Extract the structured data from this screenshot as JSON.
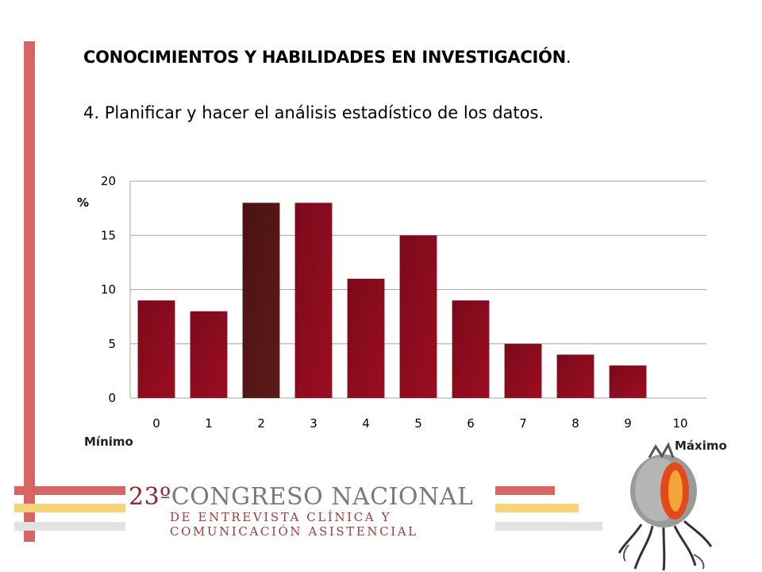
{
  "heading": "CONOCIMIENTOS Y HABILIDADES EN INVESTIGACIÓN",
  "heading_suffix": ".",
  "subtitle": "4. Planificar y hacer el análisis estadístico de los datos.",
  "min_label": "Mínimo",
  "max_label": "Máximo",
  "logo": {
    "number": "23º",
    "line1": "CONGRESO NACIONAL",
    "line2": "DE ENTREVISTA CLÍNICA Y",
    "line3": "COMUNICACIÓN ASISTENCIAL"
  },
  "colors": {
    "bar": "#9c0d22",
    "bar_highlight": "#5e1a1a",
    "grid": "#a6a6a6",
    "accent_red": "#d96464",
    "accent_yellow": "#f6d57a",
    "accent_gray": "#e2e2e2"
  },
  "chart_data": {
    "type": "bar",
    "title": "",
    "xlabel": "",
    "ylabel": "%",
    "categories": [
      "0",
      "1",
      "2",
      "3",
      "4",
      "5",
      "6",
      "7",
      "8",
      "9",
      "10"
    ],
    "values": [
      9,
      8,
      18,
      18,
      11,
      15,
      9,
      5,
      4,
      3,
      0
    ],
    "ylim": [
      0,
      20
    ],
    "yticks": [
      0,
      5,
      10,
      15,
      20
    ],
    "grid": true,
    "legend": "none"
  }
}
